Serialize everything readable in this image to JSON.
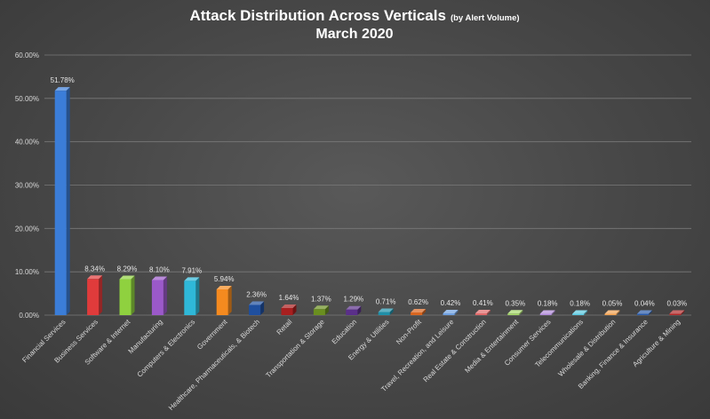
{
  "chart_data": {
    "type": "bar",
    "title": "Attack Distribution Across Verticals",
    "title_suffix": "(by Alert Volume)",
    "subtitle": "March 2020",
    "xlabel": "",
    "ylabel": "",
    "ylim": [
      0,
      60
    ],
    "y_ticks": [
      "0.00%",
      "10.00%",
      "20.00%",
      "30.00%",
      "40.00%",
      "50.00%",
      "60.00%"
    ],
    "grid": true,
    "legend": "none",
    "categories": [
      "Financial Services",
      "Business Services",
      "Software & Internet",
      "Manufacturing",
      "Computers & Electronics",
      "Government",
      "Healthcare, Pharmaceuticals, & Biotech",
      "Retail",
      "Transportation & Storage",
      "Education",
      "Energy & Utilities",
      "Non-Profit",
      "Travel, Recreation, and Leisure",
      "Real Estate & Construction",
      "Media & Entertainment",
      "Consumer Services",
      "Telecommunications",
      "Wholesale & Distribution",
      "Banking, Finance & Insurance",
      "Agriculture & Mining"
    ],
    "values": [
      51.78,
      8.34,
      8.29,
      8.1,
      7.91,
      5.94,
      2.36,
      1.64,
      1.37,
      1.29,
      0.71,
      0.62,
      0.42,
      0.41,
      0.35,
      0.18,
      0.18,
      0.05,
      0.04,
      0.03
    ],
    "data_labels": [
      "51.78%",
      "8.34%",
      "8.29%",
      "8.10%",
      "7.91%",
      "5.94%",
      "2.36%",
      "1.64%",
      "1.37%",
      "1.29%",
      "0.71%",
      "0.62%",
      "0.42%",
      "0.41%",
      "0.35%",
      "0.18%",
      "0.18%",
      "0.05%",
      "0.04%",
      "0.03%"
    ],
    "colors": [
      "#3b7dd8",
      "#e03b3b",
      "#8fd13f",
      "#9b59c9",
      "#2fb8d8",
      "#f58a1f",
      "#1f4f9e",
      "#a81f1f",
      "#6a8f1f",
      "#5a2f8a",
      "#1f8fa8",
      "#d8651f",
      "#6fa0e0",
      "#e06a6a",
      "#a6d86a",
      "#b08ad8",
      "#5ac8e0",
      "#f0a050",
      "#2a5aa8",
      "#b02a2a"
    ]
  }
}
